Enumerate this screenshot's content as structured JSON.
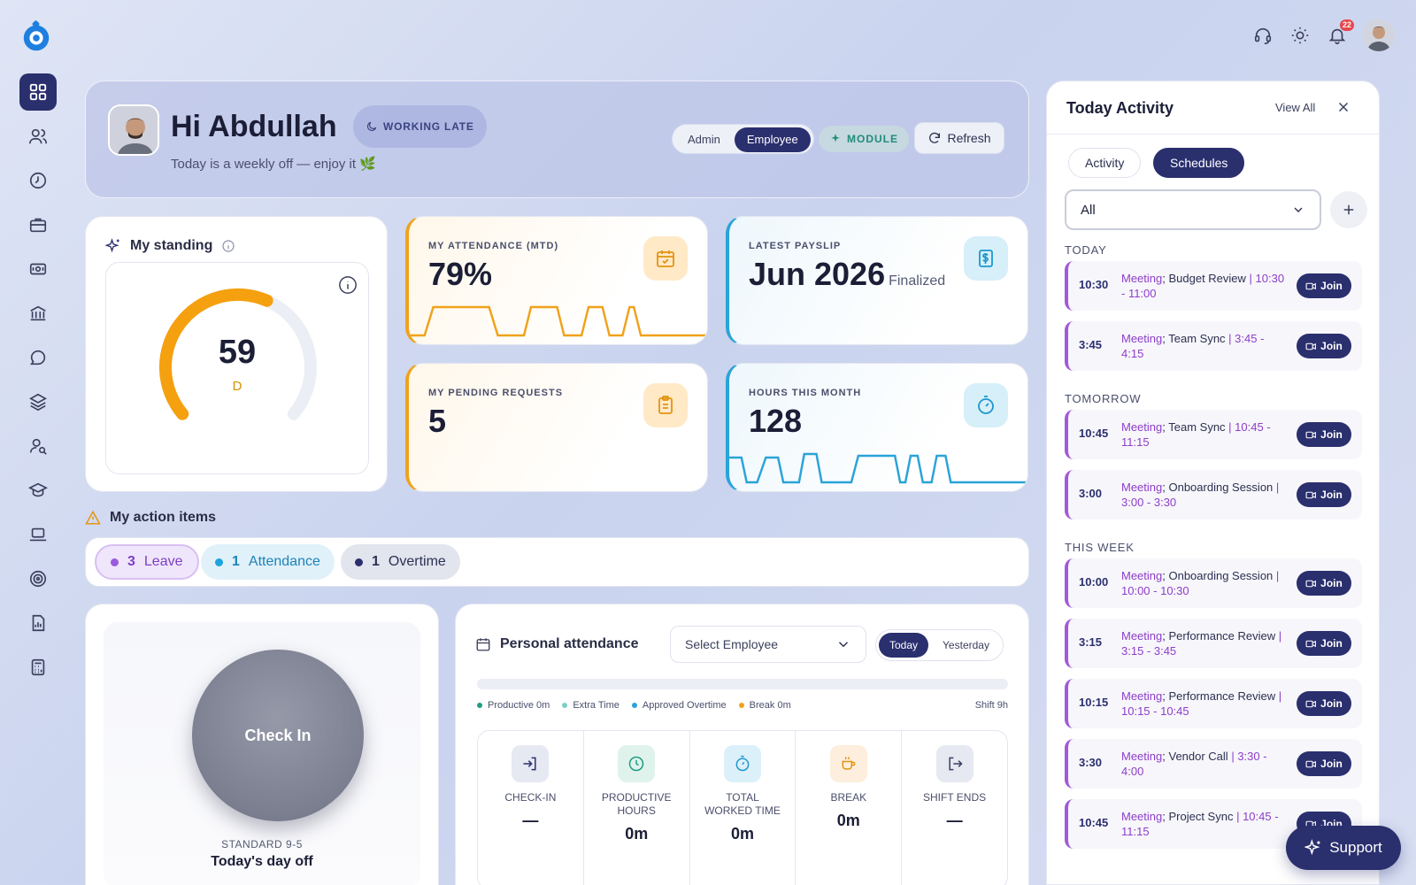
{
  "header": {
    "notification_count": "22"
  },
  "hero": {
    "greeting": "Hi Abdullah",
    "subtitle": "Today is a weekly off — enjoy it 🌿",
    "status_pill": "WORKING LATE",
    "role_options": [
      "Admin",
      "Employee"
    ],
    "selected_role": "Employee",
    "module_label": "MODULE",
    "refresh_label": "Refresh"
  },
  "standing": {
    "title": "My standing",
    "score": "59",
    "grade": "D",
    "score_fraction": 0.59
  },
  "metrics": {
    "attendance": {
      "label": "MY ATTENDANCE (MTD)",
      "value": "79%"
    },
    "payslip": {
      "label": "LATEST PAYSLIP",
      "value": "Jun 2026",
      "status": "Finalized"
    },
    "pending": {
      "label": "MY PENDING REQUESTS",
      "value": "5"
    },
    "hours": {
      "label": "HOURS THIS MONTH",
      "value": "128"
    }
  },
  "action_items": {
    "title": "My action items",
    "chips": [
      {
        "count": "3",
        "label": "Leave"
      },
      {
        "count": "1",
        "label": "Attendance"
      },
      {
        "count": "1",
        "label": "Overtime"
      }
    ]
  },
  "checkin": {
    "button_label": "Check In",
    "shift_label": "STANDARD 9-5",
    "status": "Today's day off"
  },
  "personal_attendance": {
    "title": "Personal attendance",
    "select_placeholder": "Select Employee",
    "day_options": [
      "Today",
      "Yesterday"
    ],
    "legend": [
      "Productive 0m",
      "Extra Time",
      "Approved Overtime",
      "Break 0m"
    ],
    "shift": "Shift 9h",
    "stats": [
      {
        "label": "CHECK-IN",
        "value": "—"
      },
      {
        "label": "PRODUCTIVE HOURS",
        "value": "0m"
      },
      {
        "label": "TOTAL WORKED TIME",
        "value": "0m"
      },
      {
        "label": "BREAK",
        "value": "0m"
      },
      {
        "label": "SHIFT ENDS",
        "value": "—"
      }
    ]
  },
  "activity_panel": {
    "title": "Today Activity",
    "view_all": "View All",
    "tabs": [
      "Activity",
      "Schedules"
    ],
    "filter_value": "All",
    "join_label": "Join",
    "sections": {
      "today": "TODAY",
      "tomorrow": "TOMORROW",
      "this_week": "THIS WEEK"
    },
    "events": [
      {
        "time": "10:30",
        "kind": "Meeting",
        "title": "Budget Review",
        "range": "10:30 - 11:00"
      },
      {
        "time": "3:45",
        "kind": "Meeting",
        "title": "Team Sync",
        "range": "3:45 - 4:15"
      },
      {
        "time": "10:45",
        "kind": "Meeting",
        "title": "Team Sync",
        "range": "10:45 - 11:15"
      },
      {
        "time": "3:00",
        "kind": "Meeting",
        "title": "Onboarding Session",
        "range": "3:00 - 3:30"
      },
      {
        "time": "10:00",
        "kind": "Meeting",
        "title": "Onboarding Session",
        "range": "10:00 - 10:30"
      },
      {
        "time": "3:15",
        "kind": "Meeting",
        "title": "Performance Review",
        "range": "3:15 - 3:45"
      },
      {
        "time": "10:15",
        "kind": "Meeting",
        "title": "Performance Review",
        "range": "10:15 - 10:45"
      },
      {
        "time": "3:30",
        "kind": "Meeting",
        "title": "Vendor Call",
        "range": "3:30 - 4:00"
      },
      {
        "time": "10:45",
        "kind": "Meeting",
        "title": "Project Sync",
        "range": "10:45 - 11:15"
      }
    ]
  },
  "support_label": "Support",
  "colors": {
    "primary": "#2a2f6e",
    "orange": "#f0a21a",
    "blue": "#2aa3d8",
    "purple": "#a259d9",
    "teal": "#1f8d7b"
  }
}
